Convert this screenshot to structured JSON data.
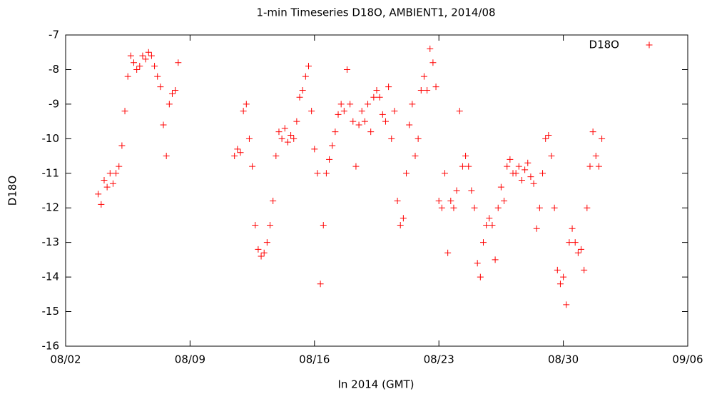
{
  "chart_data": {
    "type": "scatter",
    "title": "1-min Timeseries D18O, AMBIENT1, 2014/08",
    "x_label": "In 2014 (GMT)",
    "y_label": "D18O",
    "xlim": [
      "08/02",
      "09/06"
    ],
    "xticks": [
      "08/02",
      "08/09",
      "08/16",
      "08/23",
      "08/30",
      "09/06"
    ],
    "ylim": [
      -16,
      -7
    ],
    "yticks": [
      -16,
      -15,
      -14,
      -13,
      -12,
      -11,
      -10,
      -9,
      -8,
      -7
    ],
    "legend": "top-right",
    "series": [
      {
        "name": "D18O",
        "color": "#ff0000",
        "x": [
          "08/03 20:00",
          "08/04 00:00",
          "08/04 04:00",
          "08/04 08:00",
          "08/04 12:00",
          "08/04 16:00",
          "08/04 20:00",
          "08/05 00:00",
          "08/05 04:00",
          "08/05 08:00",
          "08/05 12:00",
          "08/05 16:00",
          "08/05 20:00",
          "08/06 00:00",
          "08/06 04:00",
          "08/06 08:00",
          "08/06 12:00",
          "08/06 16:00",
          "08/06 20:00",
          "08/07 00:00",
          "08/07 04:00",
          "08/07 08:00",
          "08/07 12:00",
          "08/07 16:00",
          "08/07 20:00",
          "08/08 00:00",
          "08/08 04:00",
          "08/08 08:00",
          "08/11 12:00",
          "08/11 16:00",
          "08/11 20:00",
          "08/12 00:00",
          "08/12 04:00",
          "08/12 08:00",
          "08/12 12:00",
          "08/12 16:00",
          "08/12 20:00",
          "08/13 00:00",
          "08/13 04:00",
          "08/13 08:00",
          "08/13 12:00",
          "08/13 16:00",
          "08/13 20:00",
          "08/14 00:00",
          "08/14 04:00",
          "08/14 08:00",
          "08/14 12:00",
          "08/14 16:00",
          "08/14 20:00",
          "08/15 00:00",
          "08/15 04:00",
          "08/15 08:00",
          "08/15 12:00",
          "08/15 16:00",
          "08/15 20:00",
          "08/16 00:00",
          "08/16 04:00",
          "08/16 08:00",
          "08/16 12:00",
          "08/16 16:00",
          "08/16 20:00",
          "08/17 00:00",
          "08/17 04:00",
          "08/17 08:00",
          "08/17 12:00",
          "08/17 16:00",
          "08/17 20:00",
          "08/18 00:00",
          "08/18 04:00",
          "08/18 08:00",
          "08/18 12:00",
          "08/18 16:00",
          "08/18 20:00",
          "08/19 00:00",
          "08/19 04:00",
          "08/19 08:00",
          "08/19 12:00",
          "08/19 16:00",
          "08/19 20:00",
          "08/20 00:00",
          "08/20 04:00",
          "08/20 08:00",
          "08/20 12:00",
          "08/20 16:00",
          "08/20 20:00",
          "08/21 00:00",
          "08/21 04:00",
          "08/21 08:00",
          "08/21 12:00",
          "08/21 16:00",
          "08/21 20:00",
          "08/22 00:00",
          "08/22 04:00",
          "08/22 08:00",
          "08/22 12:00",
          "08/22 16:00",
          "08/22 20:00",
          "08/23 00:00",
          "08/23 04:00",
          "08/23 08:00",
          "08/23 12:00",
          "08/23 16:00",
          "08/23 20:00",
          "08/24 00:00",
          "08/24 04:00",
          "08/24 08:00",
          "08/24 12:00",
          "08/24 16:00",
          "08/24 20:00",
          "08/25 00:00",
          "08/25 04:00",
          "08/25 08:00",
          "08/25 12:00",
          "08/25 16:00",
          "08/25 20:00",
          "08/26 00:00",
          "08/26 04:00",
          "08/26 08:00",
          "08/26 12:00",
          "08/26 16:00",
          "08/26 20:00",
          "08/27 00:00",
          "08/27 04:00",
          "08/27 08:00",
          "08/27 12:00",
          "08/27 16:00",
          "08/27 20:00",
          "08/28 00:00",
          "08/28 04:00",
          "08/28 08:00",
          "08/28 12:00",
          "08/28 16:00",
          "08/28 20:00",
          "08/29 00:00",
          "08/29 04:00",
          "08/29 08:00",
          "08/29 12:00",
          "08/29 16:00",
          "08/29 20:00",
          "08/30 00:00",
          "08/30 04:00",
          "08/30 08:00",
          "08/30 12:00",
          "08/30 16:00",
          "08/30 20:00",
          "08/31 00:00",
          "08/31 04:00",
          "08/31 08:00",
          "08/31 12:00",
          "08/31 16:00",
          "08/31 20:00",
          "09/01 00:00",
          "09/01 04:00"
        ],
        "values": [
          -11.6,
          -11.9,
          -11.2,
          -11.4,
          -11.0,
          -11.3,
          -11.0,
          -10.8,
          -10.2,
          -9.2,
          -8.2,
          -7.6,
          -7.8,
          -8.0,
          -7.9,
          -7.6,
          -7.7,
          -7.5,
          -7.6,
          -7.9,
          -8.2,
          -8.5,
          -9.6,
          -10.5,
          -9.0,
          -8.7,
          -8.6,
          -7.8,
          -10.5,
          -10.3,
          -10.4,
          -9.2,
          -9.0,
          -10.0,
          -10.8,
          -12.5,
          -13.2,
          -13.4,
          -13.3,
          -13.0,
          -12.5,
          -11.8,
          -10.5,
          -9.8,
          -10.0,
          -9.7,
          -10.1,
          -9.9,
          -10.0,
          -9.5,
          -8.8,
          -8.6,
          -8.2,
          -7.9,
          -9.2,
          -10.3,
          -11.0,
          -14.2,
          -12.5,
          -11.0,
          -10.6,
          -10.2,
          -9.8,
          -9.3,
          -9.0,
          -9.2,
          -8.0,
          -9.0,
          -9.5,
          -10.8,
          -9.6,
          -9.2,
          -9.5,
          -9.0,
          -9.8,
          -8.8,
          -8.6,
          -8.8,
          -9.3,
          -9.5,
          -8.5,
          -10.0,
          -9.2,
          -11.8,
          -12.5,
          -12.3,
          -11.0,
          -9.6,
          -9.0,
          -10.5,
          -10.0,
          -8.6,
          -8.2,
          -8.6,
          -7.4,
          -7.8,
          -8.5,
          -11.8,
          -12.0,
          -11.0,
          -13.3,
          -11.8,
          -12.0,
          -11.5,
          -9.2,
          -10.8,
          -10.5,
          -10.8,
          -11.5,
          -12.0,
          -13.6,
          -14.0,
          -13.0,
          -12.5,
          -12.3,
          -12.5,
          -13.5,
          -12.0,
          -11.4,
          -11.8,
          -10.8,
          -10.6,
          -11.0,
          -11.0,
          -10.8,
          -11.2,
          -10.9,
          -10.7,
          -11.1,
          -11.3,
          -12.6,
          -12.0,
          -11.0,
          -10.0,
          -9.9,
          -10.5,
          -12.0,
          -13.8,
          -14.2,
          -14.0,
          -14.8,
          -13.0,
          -12.6,
          -13.0,
          -13.3,
          -13.2,
          -13.8,
          -12.0,
          -10.8,
          -9.8,
          -10.5,
          -10.8,
          -10.0
        ]
      }
    ]
  }
}
